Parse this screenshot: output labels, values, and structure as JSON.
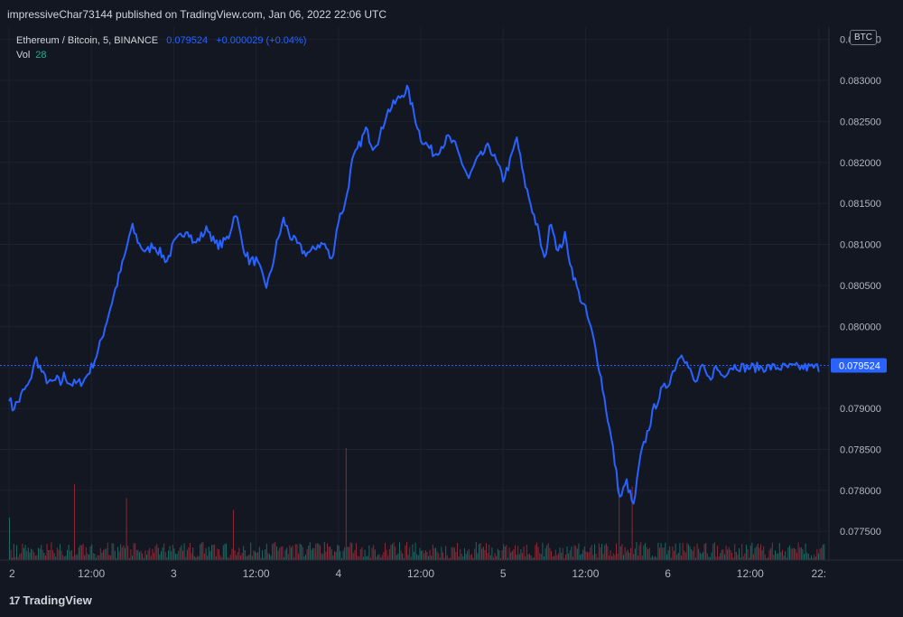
{
  "header": {
    "published_text": "impressiveChar73144 published on TradingView.com, Jan 06, 2022 22:06 UTC"
  },
  "legend": {
    "symbol": "Ethereum / Bitcoin, 5, BINANCE",
    "price": "0.079524",
    "change": "+0.000029 (+0.04%)",
    "vol_label": "Vol",
    "vol_value": "28"
  },
  "footer": {
    "brand": "TradingView",
    "brand_mark": "17"
  },
  "colors": {
    "background": "#131722",
    "line": "#2962ff",
    "grid": "#1e222d",
    "volume_up": "#22ab94",
    "volume_down": "#f23645"
  },
  "chart_data": {
    "type": "line",
    "title": "Ethereum / Bitcoin, 5, BINANCE",
    "currency": "BTC",
    "last_price": 0.079524,
    "last_price_label": "0.079524",
    "ylim": [
      0.07715,
      0.08365
    ],
    "y_ticks": [
      "0.083500",
      "0.083000",
      "0.082500",
      "0.082000",
      "0.081500",
      "0.081000",
      "0.080500",
      "0.080000",
      "0.079500",
      "0.079000",
      "0.078500",
      "0.078000",
      "0.077500"
    ],
    "y_tick_values": [
      0.0835,
      0.083,
      0.0825,
      0.082,
      0.0815,
      0.081,
      0.0805,
      0.08,
      0.0795,
      0.079,
      0.0785,
      0.078,
      0.0775
    ],
    "x_ticks": [
      "2",
      "12:00",
      "3",
      "12:00",
      "4",
      "12:00",
      "5",
      "12:00",
      "6",
      "12:00",
      "22:"
    ],
    "x_tick_hours": [
      0,
      12,
      24,
      36,
      48,
      60,
      72,
      84,
      96,
      108,
      118
    ],
    "grid": true,
    "series": [
      {
        "x_hours": [
          0,
          0.5,
          1.5,
          2,
          3,
          3.5,
          4,
          5,
          6,
          7,
          7.5,
          8,
          9,
          10,
          11,
          12,
          13,
          14,
          15,
          16,
          17,
          17.5,
          18,
          19,
          20,
          21,
          22,
          23,
          24,
          25,
          26,
          27,
          28,
          29,
          30,
          31,
          32,
          33,
          34,
          35,
          36,
          37,
          37.5,
          38,
          39,
          40,
          41,
          42,
          43,
          44,
          45,
          46,
          47,
          48,
          49,
          50,
          51,
          52,
          53,
          54,
          55,
          56,
          57,
          58,
          59,
          60,
          61,
          62,
          63,
          64,
          65,
          66,
          67,
          68,
          69,
          70,
          71,
          72,
          73,
          74,
          75,
          76,
          77,
          78,
          79,
          80,
          81,
          82,
          83,
          84,
          85,
          86,
          87,
          88,
          89,
          90,
          91,
          92,
          93,
          94,
          95,
          96,
          97,
          98,
          99,
          100,
          101,
          102,
          103,
          104,
          105,
          106,
          107,
          108,
          109,
          110,
          111,
          112,
          113,
          114,
          115,
          116,
          117,
          118
        ],
        "values": [
          0.07915,
          0.079,
          0.0791,
          0.0792,
          0.0793,
          0.0795,
          0.0796,
          0.0794,
          0.0793,
          0.07935,
          0.0793,
          0.0794,
          0.0793,
          0.0793,
          0.07935,
          0.0795,
          0.0797,
          0.08,
          0.0803,
          0.0806,
          0.0809,
          0.0811,
          0.0812,
          0.081,
          0.0809,
          0.081,
          0.0809,
          0.0808,
          0.081,
          0.0811,
          0.0812,
          0.081,
          0.0811,
          0.0812,
          0.081,
          0.081,
          0.0811,
          0.0814,
          0.081,
          0.0808,
          0.0808,
          0.0806,
          0.0805,
          0.0806,
          0.081,
          0.0813,
          0.0811,
          0.081,
          0.0809,
          0.0809,
          0.081,
          0.081,
          0.0808,
          0.0813,
          0.0815,
          0.082,
          0.0822,
          0.0824,
          0.0822,
          0.0823,
          0.0826,
          0.0827,
          0.0828,
          0.0829,
          0.0826,
          0.0823,
          0.0822,
          0.0821,
          0.0822,
          0.0823,
          0.0822,
          0.082,
          0.0818,
          0.082,
          0.0821,
          0.0822,
          0.082,
          0.0818,
          0.082,
          0.0823,
          0.0818,
          0.0815,
          0.0812,
          0.0808,
          0.0813,
          0.0809,
          0.0811,
          0.0807,
          0.0804,
          0.0802,
          0.0799,
          0.0795,
          0.079,
          0.0785,
          0.0779,
          0.0781,
          0.0778,
          0.0784,
          0.0787,
          0.079,
          0.0792,
          0.0793,
          0.0795,
          0.0797,
          0.0795,
          0.0793,
          0.0795,
          0.07935,
          0.0795,
          0.0794,
          0.0795,
          0.07952,
          0.0795,
          0.0795,
          0.0795,
          0.0795,
          0.0795,
          0.0795,
          0.0795,
          0.0795,
          0.0795,
          0.0795,
          0.0795,
          0.0795
        ],
        "color": "#2962ff"
      }
    ]
  }
}
